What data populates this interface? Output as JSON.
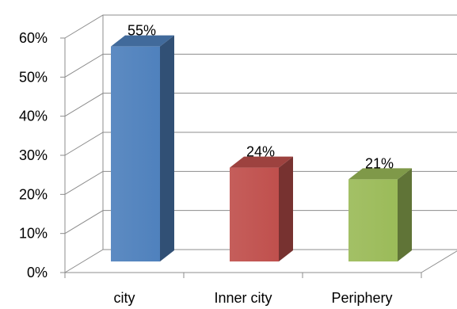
{
  "chart_data": {
    "type": "bar",
    "three_d": true,
    "categories": [
      "city",
      "Inner city",
      "Periphery"
    ],
    "values": [
      55,
      24,
      21
    ],
    "data_labels": [
      "55%",
      "24%",
      "21%"
    ],
    "colors": [
      "#4f81bd",
      "#c0504d",
      "#9bbb59"
    ],
    "y_ticks": [
      "0%",
      "10%",
      "20%",
      "30%",
      "40%",
      "50%",
      "60%"
    ],
    "ylim": [
      0,
      60
    ],
    "grid": true,
    "legend": "none"
  }
}
